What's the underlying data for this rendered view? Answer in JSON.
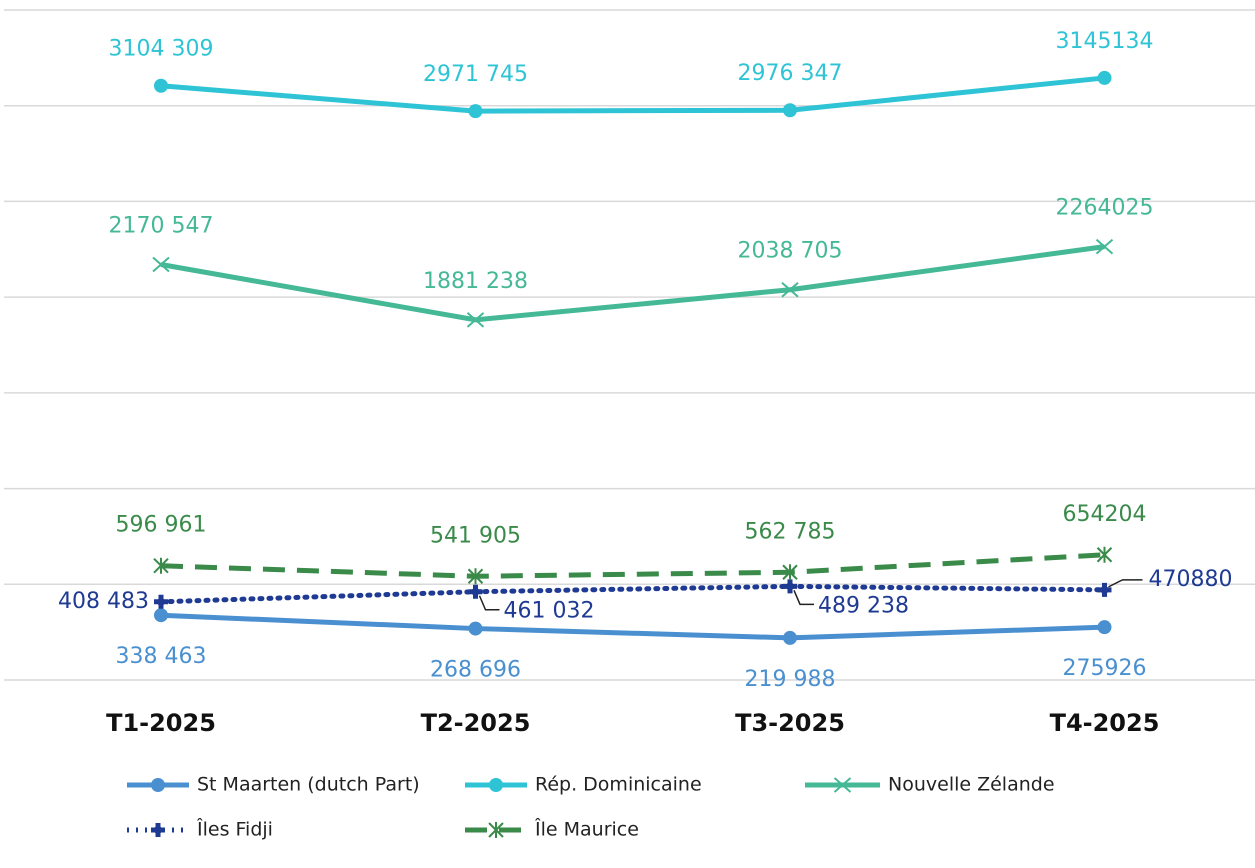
{
  "chart_data": {
    "type": "line",
    "categories": [
      "T1-2025",
      "T2-2025",
      "T3-2025",
      "T4-2025"
    ],
    "ylim": [
      0,
      3500000
    ],
    "yticks": [
      0,
      500000,
      1000000,
      1500000,
      2000000,
      2500000,
      3000000,
      3500000
    ],
    "grid": true,
    "series": [
      {
        "name": "St Maarten (dutch Part)",
        "color": "#4a90d0",
        "marker": "circle",
        "dash": "solid",
        "values": [
          338463,
          268696,
          219988,
          275926
        ],
        "value_labels": [
          "338 463",
          "268 696",
          "219 988",
          "275926"
        ]
      },
      {
        "name": "Rép. Dominicaine",
        "color": "#2ec4d6",
        "marker": "circle",
        "dash": "solid",
        "values": [
          3104309,
          2971745,
          2976347,
          3145134
        ],
        "value_labels": [
          "3104 309",
          "2971 745",
          "2976 347",
          "3145134"
        ]
      },
      {
        "name": "Nouvelle Zélande",
        "color": "#45b896",
        "marker": "x",
        "dash": "solid",
        "values": [
          2170547,
          1881238,
          2038705,
          2264025
        ],
        "value_labels": [
          "2170 547",
          "1881 238",
          "2038 705",
          "2264025"
        ]
      },
      {
        "name": "Îles Fidji",
        "color": "#1f3a93",
        "marker": "plus",
        "dash": "dotted",
        "values": [
          408483,
          461032,
          489238,
          470880
        ],
        "value_labels": [
          "408 483",
          "461 032",
          "489 238",
          "470880"
        ]
      },
      {
        "name": "Île Maurice",
        "color": "#3a8a4a",
        "marker": "star",
        "dash": "dashed",
        "values": [
          596961,
          541905,
          562785,
          654204
        ],
        "value_labels": [
          "596 961",
          "541 905",
          "562 785",
          "654204"
        ]
      }
    ]
  }
}
